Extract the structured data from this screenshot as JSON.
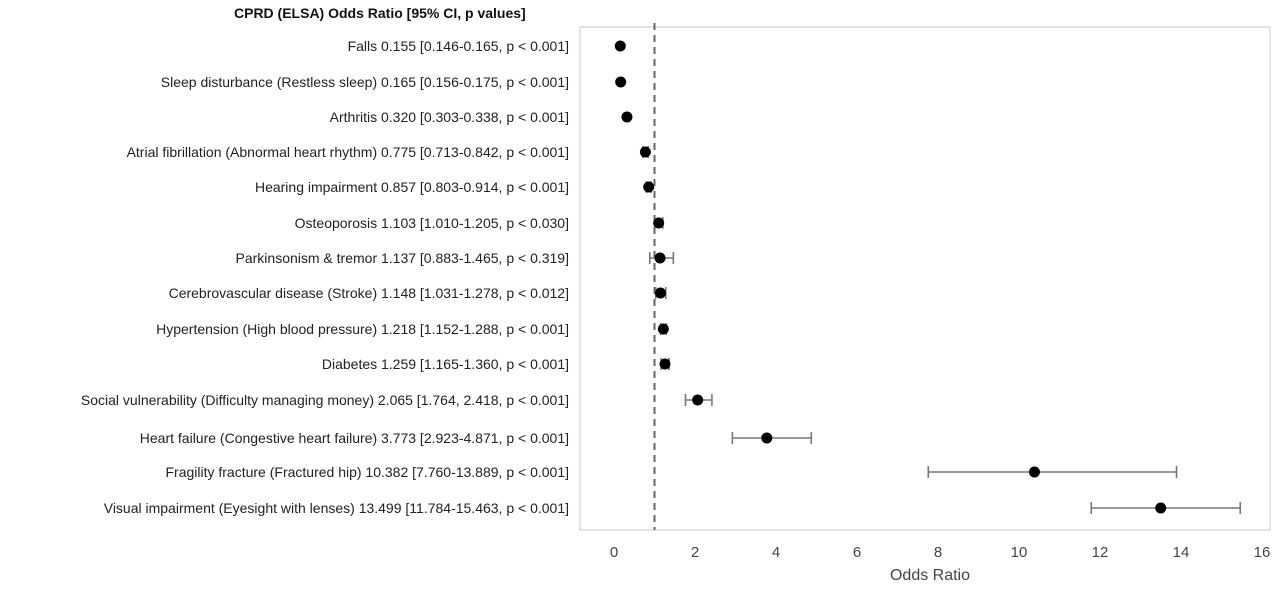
{
  "chart_data": {
    "type": "forest",
    "header": "CPRD (ELSA) Odds Ratio [95% CI, p values]",
    "xlabel": "Odds Ratio",
    "xlim": [
      -0.5,
      16.2
    ],
    "xticks": [
      0,
      2,
      4,
      6,
      8,
      10,
      12,
      14,
      16
    ],
    "reference_line": 1,
    "rows": [
      {
        "label": "Falls 0.155 [0.146-0.165, p < 0.001]",
        "or": 0.155,
        "lo": 0.146,
        "hi": 0.165
      },
      {
        "label": "Sleep disturbance (Restless sleep) 0.165 [0.156-0.175, p < 0.001]",
        "or": 0.165,
        "lo": 0.156,
        "hi": 0.175
      },
      {
        "label": "Arthritis  0.320 [0.303-0.338, p < 0.001]",
        "or": 0.32,
        "lo": 0.303,
        "hi": 0.338
      },
      {
        "label": "Atrial fibrillation (Abnormal heart rhythm)  0.775 [0.713-0.842, p < 0.001]",
        "or": 0.775,
        "lo": 0.713,
        "hi": 0.842
      },
      {
        "label": "Hearing impairment  0.857 [0.803-0.914, p < 0.001]",
        "or": 0.857,
        "lo": 0.803,
        "hi": 0.914
      },
      {
        "label": "Osteoporosis 1.103 [1.010-1.205, p < 0.030]",
        "or": 1.103,
        "lo": 1.01,
        "hi": 1.205
      },
      {
        "label": "Parkinsonism & tremor  1.137 [0.883-1.465, p < 0.319]",
        "or": 1.137,
        "lo": 0.883,
        "hi": 1.465
      },
      {
        "label": "Cerebrovascular disease (Stroke)  1.148 [1.031-1.278, p < 0.012]",
        "or": 1.148,
        "lo": 1.031,
        "hi": 1.278
      },
      {
        "label": "Hypertension  (High blood pressure) 1.218 [1.152-1.288, p < 0.001]",
        "or": 1.218,
        "lo": 1.152,
        "hi": 1.288
      },
      {
        "label": "Diabetes 1.259 [1.165-1.360, p < 0.001]",
        "or": 1.259,
        "lo": 1.165,
        "hi": 1.36
      },
      {
        "label": "Social vulnerability (Difficulty managing money) 2.065 [1.764, 2.418, p < 0.001]",
        "or": 2.065,
        "lo": 1.764,
        "hi": 2.418
      },
      {
        "label": "Heart failure (Congestive heart failure) 3.773 [2.923-4.871, p < 0.001]",
        "or": 3.773,
        "lo": 2.923,
        "hi": 4.871
      },
      {
        "label": "Fragility fracture (Fractured hip) 10.382 [7.760-13.889, p < 0.001]",
        "or": 10.382,
        "lo": 7.76,
        "hi": 13.889
      },
      {
        "label": "Visual impairment (Eyesight with lenses) 13.499 [11.784-15.463, p < 0.001]",
        "or": 13.499,
        "lo": 11.784,
        "hi": 15.463
      }
    ]
  }
}
